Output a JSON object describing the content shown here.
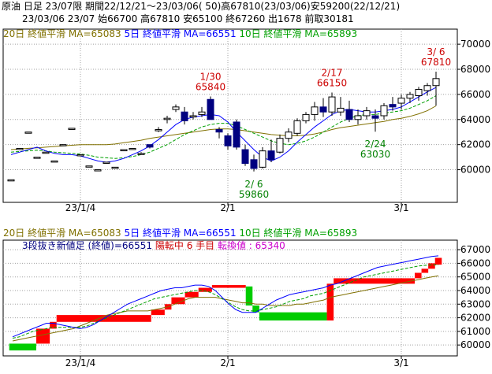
{
  "header": {
    "line1": "原油 日足 23/07限 期間22/12/21～23/03/06( 50)高67810(23/03/06)安59200(22/12/21)",
    "line2": "23/03/06 23/07 始66700 高67810 安65100 終67260 出1678 前取30181"
  },
  "colors": {
    "ma20": "#807000",
    "ma5": "#0000ff",
    "ma10": "#00a000",
    "up_brick": "#ff0000",
    "down_brick": "#00cc00",
    "annotation_red": "#cc0000",
    "annotation_green": "#008000",
    "magenta": "#cc00cc",
    "grid": "#a0a0a0"
  },
  "chart_data": [
    {
      "type": "candlestick",
      "legend": {
        "ma20": "20日 終値平滑 MA=65083",
        "ma5": "5日 終値平滑 MA=66551",
        "ma10": "10日 終値平滑 MA=65893"
      },
      "ylim": [
        57400,
        71200
      ],
      "yticks": [
        60000,
        62000,
        64000,
        66000,
        68000,
        70000
      ],
      "ytick_labels": [
        "60000",
        "62000",
        "64000",
        "66000",
        "68000",
        "70000"
      ],
      "xtick_labels": [
        {
          "label": "23/1/4",
          "index": 8
        },
        {
          "label": "2/1",
          "index": 25
        },
        {
          "label": "3/1",
          "index": 45
        }
      ],
      "annotations": [
        {
          "line1": "1/30",
          "line2": "65840",
          "index": 23,
          "color": "red",
          "side": "above"
        },
        {
          "line1": "2/ 6",
          "line2": "59860",
          "index": 28,
          "color": "green",
          "side": "below"
        },
        {
          "line1": "2/17",
          "line2": "66150",
          "index": 37,
          "color": "red",
          "side": "above"
        },
        {
          "line1": "2/24",
          "line2": "63030",
          "index": 42,
          "color": "green",
          "side": "below"
        },
        {
          "line1": "3/ 6",
          "line2": "67810",
          "index": 49,
          "color": "red",
          "side": "above"
        }
      ],
      "candles": [
        {
          "o": 59200,
          "h": 59200,
          "l": 59200,
          "c": 59200
        },
        {
          "o": 61700,
          "h": 61700,
          "l": 61700,
          "c": 61700
        },
        {
          "o": 63000,
          "h": 63000,
          "l": 63000,
          "c": 63000
        },
        {
          "o": 61000,
          "h": 61000,
          "l": 61000,
          "c": 61000
        },
        {
          "o": 61400,
          "h": 61400,
          "l": 61400,
          "c": 61400
        },
        {
          "o": 60700,
          "h": 60700,
          "l": 60700,
          "c": 60700
        },
        {
          "o": 62000,
          "h": 62000,
          "l": 62000,
          "c": 62000
        },
        {
          "o": 63300,
          "h": 63300,
          "l": 63300,
          "c": 63300
        },
        {
          "o": 61200,
          "h": 61200,
          "l": 61200,
          "c": 61200
        },
        {
          "o": 60300,
          "h": 60300,
          "l": 60300,
          "c": 60300
        },
        {
          "o": 60000,
          "h": 60000,
          "l": 60000,
          "c": 60000
        },
        {
          "o": 60600,
          "h": 60600,
          "l": 60600,
          "c": 60600
        },
        {
          "o": 60200,
          "h": 60200,
          "l": 60200,
          "c": 60200
        },
        {
          "o": 61600,
          "h": 61600,
          "l": 61600,
          "c": 61600
        },
        {
          "o": 61700,
          "h": 61700,
          "l": 61700,
          "c": 61700
        },
        {
          "o": 61300,
          "h": 61400,
          "l": 61200,
          "c": 61300
        },
        {
          "o": 62000,
          "h": 62000,
          "l": 61700,
          "c": 61800
        },
        {
          "o": 63100,
          "h": 63400,
          "l": 63000,
          "c": 63200
        },
        {
          "o": 64000,
          "h": 64300,
          "l": 63700,
          "c": 64100
        },
        {
          "o": 64800,
          "h": 65200,
          "l": 64600,
          "c": 65000
        },
        {
          "o": 64600,
          "h": 65000,
          "l": 63600,
          "c": 63900
        },
        {
          "o": 64200,
          "h": 64600,
          "l": 64000,
          "c": 64300
        },
        {
          "o": 64400,
          "h": 65000,
          "l": 64200,
          "c": 64600
        },
        {
          "o": 65600,
          "h": 65840,
          "l": 64000,
          "c": 64000
        },
        {
          "o": 63200,
          "h": 63400,
          "l": 62500,
          "c": 63000
        },
        {
          "o": 62700,
          "h": 62900,
          "l": 61600,
          "c": 61900
        },
        {
          "o": 63800,
          "h": 64000,
          "l": 61600,
          "c": 61800
        },
        {
          "o": 61600,
          "h": 62000,
          "l": 60300,
          "c": 60500
        },
        {
          "o": 60800,
          "h": 61200,
          "l": 59860,
          "c": 60100
        },
        {
          "o": 60200,
          "h": 61800,
          "l": 60100,
          "c": 61500
        },
        {
          "o": 61500,
          "h": 62400,
          "l": 60600,
          "c": 60800
        },
        {
          "o": 61400,
          "h": 62800,
          "l": 61300,
          "c": 62500
        },
        {
          "o": 62500,
          "h": 63300,
          "l": 62200,
          "c": 63000
        },
        {
          "o": 62900,
          "h": 64100,
          "l": 62700,
          "c": 63900
        },
        {
          "o": 63900,
          "h": 64600,
          "l": 63700,
          "c": 64400
        },
        {
          "o": 64400,
          "h": 65400,
          "l": 63900,
          "c": 65000
        },
        {
          "o": 65000,
          "h": 65700,
          "l": 64200,
          "c": 64600
        },
        {
          "o": 64600,
          "h": 66150,
          "l": 64300,
          "c": 65800
        },
        {
          "o": 64600,
          "h": 65800,
          "l": 64300,
          "c": 64900
        },
        {
          "o": 64800,
          "h": 65500,
          "l": 63800,
          "c": 64000
        },
        {
          "o": 64000,
          "h": 64800,
          "l": 63600,
          "c": 64300
        },
        {
          "o": 64300,
          "h": 65000,
          "l": 64000,
          "c": 64700
        },
        {
          "o": 64300,
          "h": 64800,
          "l": 63030,
          "c": 64100
        },
        {
          "o": 64300,
          "h": 65300,
          "l": 64000,
          "c": 65100
        },
        {
          "o": 65200,
          "h": 65800,
          "l": 64700,
          "c": 65000
        },
        {
          "o": 65300,
          "h": 66000,
          "l": 64800,
          "c": 65700
        },
        {
          "o": 65700,
          "h": 66200,
          "l": 65300,
          "c": 66000
        },
        {
          "o": 65900,
          "h": 66600,
          "l": 65500,
          "c": 66400
        },
        {
          "o": 66300,
          "h": 66900,
          "l": 65900,
          "c": 66700
        },
        {
          "o": 66700,
          "h": 67810,
          "l": 65100,
          "c": 67260
        }
      ],
      "ma20_values": [
        61600,
        61650,
        61700,
        61750,
        61800,
        61850,
        61900,
        61950,
        62000,
        62000,
        62000,
        62000,
        62050,
        62150,
        62250,
        62350,
        62500,
        62600,
        62700,
        62800,
        62900,
        63000,
        63100,
        63200,
        63250,
        63250,
        63200,
        63100,
        63000,
        62900,
        62800,
        62750,
        62700,
        62700,
        62750,
        62850,
        63000,
        63200,
        63350,
        63450,
        63550,
        63650,
        63750,
        63850,
        64000,
        64100,
        64250,
        64450,
        64700,
        65083
      ],
      "ma5_values": [
        61200,
        61400,
        61600,
        61800,
        61500,
        61300,
        61200,
        61200,
        61100,
        60900,
        60700,
        60600,
        60700,
        60900,
        61200,
        61500,
        61900,
        62400,
        63000,
        63600,
        64000,
        64200,
        64300,
        64400,
        64300,
        63800,
        63000,
        62300,
        61600,
        61000,
        60700,
        61000,
        61500,
        62200,
        62800,
        63400,
        63900,
        64400,
        64700,
        64800,
        64700,
        64600,
        64600,
        64700,
        64800,
        65000,
        65400,
        65800,
        66200,
        66551
      ],
      "ma10_values": [
        61400,
        61450,
        61500,
        61550,
        61500,
        61400,
        61350,
        61300,
        61250,
        61150,
        61000,
        60950,
        60900,
        60950,
        61050,
        61200,
        61400,
        61700,
        62000,
        62400,
        62800,
        63100,
        63400,
        63600,
        63700,
        63700,
        63500,
        63200,
        62900,
        62600,
        62300,
        62100,
        62000,
        62100,
        62300,
        62600,
        63000,
        63400,
        63800,
        64100,
        64300,
        64400,
        64400,
        64500,
        64600,
        64700,
        64900,
        65200,
        65500,
        65893
      ]
    },
    {
      "type": "three_line_break",
      "legend": {
        "ma20": "20日 終値平滑 MA=65083",
        "ma5": "5日 終値平滑 MA=66551",
        "ma10": "10日 終値平滑 MA=65893"
      },
      "title_prefix": "3段抜き新値足 (終値)=66551",
      "status": "陽転中",
      "count": "6 手目",
      "reversal": "転換値 : 65340",
      "ylim": [
        59200,
        67700
      ],
      "yticks": [
        60000,
        61000,
        62000,
        63000,
        64000,
        65000,
        66000,
        67000
      ],
      "ytick_labels": [
        "60000",
        "61000",
        "62000",
        "63000",
        "64000",
        "65000",
        "66000",
        "67000"
      ],
      "bricks": [
        {
          "i0": 0,
          "i1": 4,
          "lo": 59600,
          "hi": 60100,
          "dir": "down"
        },
        {
          "i0": 4,
          "i1": 6,
          "lo": 60100,
          "hi": 61200,
          "dir": "up"
        },
        {
          "i0": 6,
          "i1": 7,
          "lo": 61200,
          "hi": 61700,
          "dir": "up"
        },
        {
          "i0": 7,
          "i1": 21,
          "lo": 61700,
          "hi": 62200,
          "dir": "up"
        },
        {
          "i0": 21,
          "i1": 23,
          "lo": 62200,
          "hi": 62600,
          "dir": "up"
        },
        {
          "i0": 23,
          "i1": 24,
          "lo": 62600,
          "hi": 63000,
          "dir": "up"
        },
        {
          "i0": 24,
          "i1": 26,
          "lo": 63000,
          "hi": 63500,
          "dir": "up"
        },
        {
          "i0": 26,
          "i1": 28,
          "lo": 63500,
          "hi": 63900,
          "dir": "up"
        },
        {
          "i0": 28,
          "i1": 30,
          "lo": 63900,
          "hi": 64200,
          "dir": "up"
        },
        {
          "i0": 30,
          "i1": 35,
          "lo": 64200,
          "hi": 64400,
          "dir": "up"
        },
        {
          "i0": 35,
          "i1": 36,
          "lo": 62900,
          "hi": 64300,
          "dir": "down"
        },
        {
          "i0": 36,
          "i1": 37,
          "lo": 62400,
          "hi": 62900,
          "dir": "down"
        },
        {
          "i0": 37,
          "i1": 47,
          "lo": 61800,
          "hi": 62400,
          "dir": "down"
        },
        {
          "i0": 47,
          "i1": 48,
          "lo": 61800,
          "hi": 64500,
          "dir": "up"
        },
        {
          "i0": 48,
          "i1": 60,
          "lo": 64500,
          "hi": 64900,
          "dir": "up"
        },
        {
          "i0": 60,
          "i1": 61,
          "lo": 64900,
          "hi": 65300,
          "dir": "up"
        },
        {
          "i0": 61,
          "i1": 62,
          "lo": 65300,
          "hi": 65600,
          "dir": "up"
        },
        {
          "i0": 62,
          "i1": 63,
          "lo": 65600,
          "hi": 66000,
          "dir": "up"
        },
        {
          "i0": 63,
          "i1": 64,
          "lo": 65900,
          "hi": 66400,
          "dir": "up"
        }
      ],
      "ma20_values": [
        60300,
        60400,
        60500,
        60600,
        60700,
        60800,
        60900,
        61000,
        61100,
        61200,
        61400,
        61600,
        61800,
        62000,
        62200,
        62300,
        62400,
        62500,
        62500,
        62500,
        62500,
        62600,
        62700,
        62800,
        63000,
        63200,
        63400,
        63500,
        63500,
        63500,
        63500,
        63400,
        63300,
        63200,
        63100,
        63100,
        63000,
        63000,
        62900,
        62900,
        62900,
        62900,
        63000,
        63000,
        63100,
        63200,
        63300,
        63500,
        63600,
        63700,
        63800,
        63900,
        64000,
        64100,
        64200,
        64300,
        64400,
        64500,
        64600,
        64700,
        64800,
        64900,
        65000,
        65083
      ],
      "ma5_values": [
        60600,
        60800,
        61000,
        61200,
        61400,
        61600,
        61600,
        61500,
        61400,
        61300,
        61200,
        61300,
        61500,
        61800,
        62100,
        62400,
        62700,
        63000,
        63200,
        63400,
        63600,
        63800,
        64000,
        64100,
        64200,
        64200,
        64300,
        64400,
        64400,
        64300,
        64000,
        63500,
        63000,
        62600,
        62400,
        62400,
        62400,
        62700,
        63000,
        63300,
        63500,
        63700,
        63800,
        63900,
        64000,
        64100,
        64200,
        64400,
        64500,
        64700,
        64900,
        65100,
        65300,
        65500,
        65700,
        65800,
        65900,
        66000,
        66100,
        66200,
        66300,
        66400,
        66500,
        66551
      ],
      "ma10_values": [
        60500,
        60600,
        60800,
        61000,
        61100,
        61200,
        61300,
        61300,
        61300,
        61300,
        61300,
        61400,
        61600,
        61800,
        62000,
        62200,
        62400,
        62600,
        62800,
        63000,
        63200,
        63400,
        63500,
        63600,
        63700,
        63800,
        63900,
        64000,
        64000,
        63900,
        63700,
        63400,
        63100,
        62800,
        62600,
        62500,
        62500,
        62600,
        62700,
        62800,
        63000,
        63200,
        63300,
        63400,
        63600,
        63700,
        63800,
        64000,
        64200,
        64400,
        64600,
        64800,
        65000,
        65100,
        65200,
        65300,
        65400,
        65500,
        65600,
        65700,
        65800,
        65850,
        65880,
        65893
      ]
    }
  ]
}
